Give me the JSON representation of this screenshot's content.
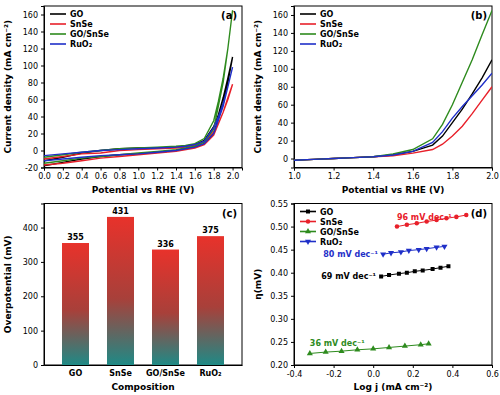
{
  "chart_data": [
    {
      "type": "line",
      "title": "(a)",
      "x_label": "Potential vs RHE (V)",
      "y_label": "Current density (mA cm⁻²)",
      "x": [
        0,
        0.2,
        0.4,
        0.6,
        0.8,
        1.0,
        1.2,
        1.4,
        1.5,
        1.6,
        1.7,
        1.8,
        1.85,
        1.9,
        1.95,
        2.0,
        1.95,
        1.9,
        1.8,
        1.7,
        1.6,
        1.4,
        1.2,
        1.0,
        0.8,
        0.6,
        0.4,
        0.2,
        0
      ],
      "series": [
        {
          "name": "GO",
          "color": "#000000",
          "values": [
            -12,
            -8,
            -3,
            0,
            2,
            3,
            3,
            4,
            5,
            7,
            12,
            28,
            42,
            62,
            85,
            110,
            80,
            55,
            20,
            8,
            4,
            0,
            -2,
            -4,
            -5,
            -7,
            -10,
            -14,
            -18
          ]
        },
        {
          "name": "SnSe",
          "color": "#e8202a",
          "values": [
            -10,
            -7,
            -4,
            -3,
            0,
            1,
            2,
            3,
            4,
            6,
            10,
            22,
            32,
            45,
            60,
            78,
            62,
            45,
            18,
            7,
            3,
            -1,
            -3,
            -5,
            -7,
            -9,
            -12,
            -15,
            -17
          ]
        },
        {
          "name": "GO/SnSe",
          "color": "#2e8b1e",
          "values": [
            -8,
            -5,
            -2,
            0,
            2,
            3,
            4,
            5,
            6,
            8,
            14,
            35,
            58,
            85,
            120,
            165,
            120,
            80,
            25,
            10,
            5,
            1,
            -1,
            -3,
            -5,
            -7,
            -9,
            -12,
            -15
          ]
        },
        {
          "name": "RuO₂",
          "color": "#1f2fc8",
          "values": [
            -6,
            -4,
            -2,
            0,
            1,
            2,
            3,
            4,
            5,
            7,
            11,
            27,
            40,
            55,
            75,
            98,
            75,
            52,
            20,
            8,
            4,
            0,
            -2,
            -4,
            -5,
            -6,
            -8,
            -10,
            -12
          ]
        }
      ],
      "xlim": [
        0,
        2.1
      ],
      "xticks": [
        {
          "value": 0,
          "label": "0.0"
        },
        0.2,
        0.4,
        0.6,
        0.8,
        {
          "value": 1,
          "label": "1.0"
        },
        1.2,
        1.4,
        1.6,
        1.8,
        {
          "value": 2,
          "label": "2.0"
        }
      ],
      "ylim": [
        -20,
        170
      ],
      "yticks": [
        -20,
        0,
        20,
        40,
        60,
        80,
        100,
        120,
        140,
        160
      ],
      "legend": "top-left"
    },
    {
      "type": "line",
      "title": "(b)",
      "x_label": "Potential vs RHE (V)",
      "y_label": "Current density (mA cm⁻²)",
      "x": [
        1.0,
        1.1,
        1.2,
        1.3,
        1.4,
        1.5,
        1.6,
        1.7,
        1.75,
        1.8,
        1.85,
        1.9,
        1.95,
        2.0
      ],
      "series": [
        {
          "name": "GO",
          "color": "#000000",
          "values": [
            -2,
            -1,
            0,
            1,
            2,
            4,
            8,
            15,
            25,
            40,
            55,
            72,
            90,
            110
          ]
        },
        {
          "name": "SnSe",
          "color": "#e8202a",
          "values": [
            -2,
            -1,
            0,
            1,
            2,
            3,
            6,
            10,
            16,
            25,
            36,
            50,
            65,
            80
          ]
        },
        {
          "name": "GO/SnSe",
          "color": "#2e8b1e",
          "values": [
            -2,
            -1,
            0,
            1,
            2,
            5,
            10,
            22,
            38,
            60,
            85,
            110,
            138,
            165
          ]
        },
        {
          "name": "RuO₂",
          "color": "#1f2fc8",
          "values": [
            -2,
            -1,
            0,
            1,
            2,
            4,
            8,
            18,
            30,
            45,
            58,
            70,
            82,
            95
          ]
        }
      ],
      "xlim": [
        1.0,
        2.0
      ],
      "xticks": [
        {
          "value": 1,
          "label": "1.0"
        },
        1.2,
        1.4,
        1.6,
        1.8,
        {
          "value": 2,
          "label": "2.0"
        }
      ],
      "ylim": [
        -10,
        170
      ],
      "yticks": [
        0,
        20,
        40,
        60,
        80,
        100,
        120,
        140,
        160
      ],
      "legend": "top-left"
    },
    {
      "type": "bar",
      "title": "(c)",
      "x_label": "Composition",
      "y_label": "Overpotential (mV)",
      "categories": [
        "GO",
        "SnSe",
        "GO/SnSe",
        "RuO₂"
      ],
      "values": [
        355,
        431,
        336,
        375
      ],
      "color": "#e8322b",
      "ylim": [
        0,
        470
      ],
      "yticks": [
        0,
        100,
        200,
        300,
        400
      ],
      "data_labels": true
    },
    {
      "type": "scatter",
      "title": "(d)",
      "x_label": "Log j (mA cm⁻²)",
      "y_label": "η(mV)",
      "series": [
        {
          "name": "GO",
          "color": "#000000",
          "marker": "square",
          "line_style": "solid",
          "x": [
            0.04,
            0.08,
            0.13,
            0.17,
            0.21,
            0.25,
            0.3,
            0.34,
            0.38
          ],
          "values": [
            0.392,
            0.395,
            0.398,
            0.4,
            0.403,
            0.405,
            0.408,
            0.411,
            0.414
          ]
        },
        {
          "name": "SnSe",
          "color": "#e8202a",
          "marker": "circle",
          "line_style": "solid",
          "x": [
            0.12,
            0.17,
            0.22,
            0.27,
            0.32,
            0.37,
            0.42,
            0.47
          ],
          "values": [
            0.5,
            0.504,
            0.507,
            0.511,
            0.514,
            0.518,
            0.521,
            0.525
          ]
        },
        {
          "name": "GO/SnSe",
          "color": "#2e8b1e",
          "marker": "triangle",
          "line_style": "solid",
          "x": [
            -0.32,
            -0.24,
            -0.16,
            -0.08,
            0.0,
            0.08,
            0.16,
            0.24,
            0.28
          ],
          "values": [
            0.225,
            0.228,
            0.23,
            0.233,
            0.235,
            0.238,
            0.241,
            0.244,
            0.246
          ]
        },
        {
          "name": "RuO₂",
          "color": "#1f2fc8",
          "marker": "triangle-down",
          "line_style": "solid",
          "x": [
            0.05,
            0.09,
            0.14,
            0.18,
            0.23,
            0.27,
            0.32,
            0.36
          ],
          "values": [
            0.44,
            0.443,
            0.445,
            0.448,
            0.45,
            0.452,
            0.455,
            0.457
          ]
        }
      ],
      "annotations": [
        "69 mV dec⁻¹",
        "96 mV dec⁻¹",
        "36 mV dec⁻¹",
        "80 mV dec⁻¹"
      ],
      "xlim": [
        -0.4,
        0.6
      ],
      "xticks": [
        -0.4,
        -0.2,
        {
          "value": 0,
          "label": "0.0"
        },
        0.2,
        0.4,
        0.6
      ],
      "ylim": [
        0.2,
        0.55
      ],
      "yticks": [
        {
          "value": 0.2,
          "label": "0.20"
        },
        0.25,
        {
          "value": 0.3,
          "label": "0.30"
        },
        0.35,
        {
          "value": 0.4,
          "label": "0.40"
        },
        0.45,
        {
          "value": 0.5,
          "label": "0.50"
        },
        0.55
      ],
      "legend": "top-left"
    }
  ]
}
